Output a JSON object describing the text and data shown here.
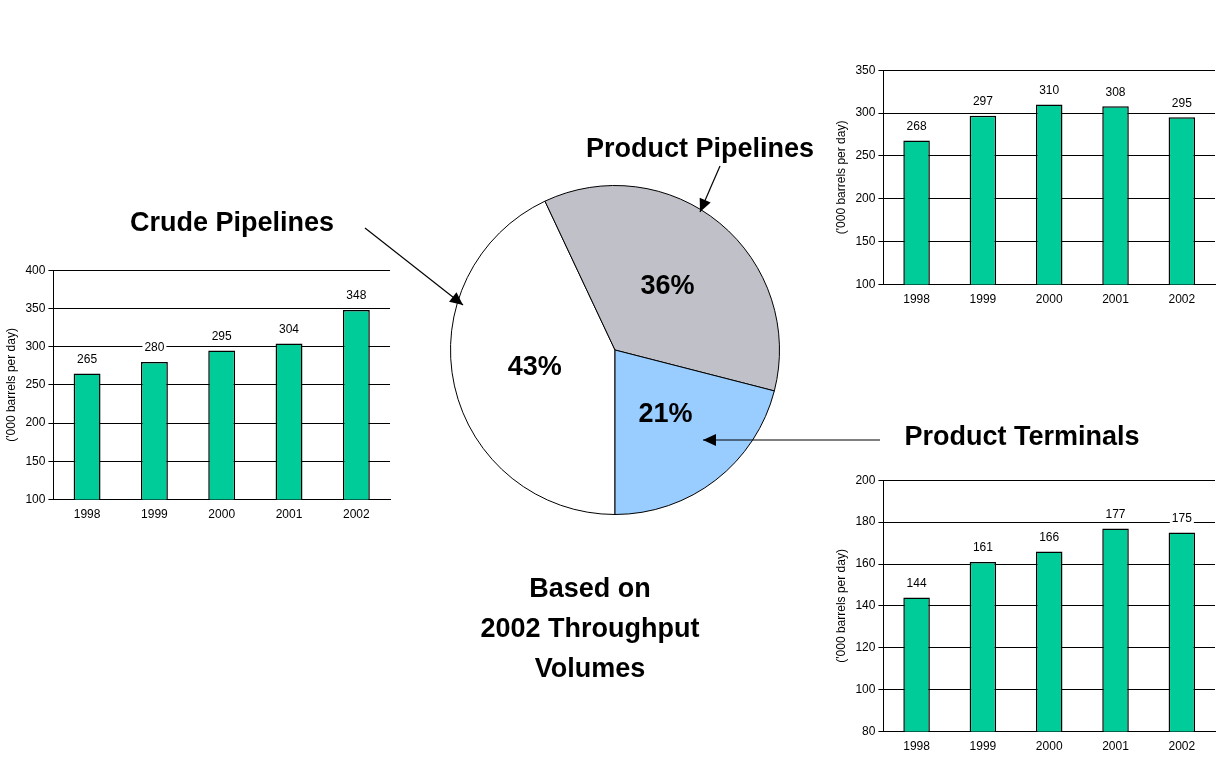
{
  "chart_data": [
    {
      "type": "pie",
      "title": "Based on\n2002 Throughput\nVolumes",
      "categories": [
        "Crude Pipelines",
        "Product Pipelines",
        "Product Terminals"
      ],
      "values": [
        43,
        36,
        21
      ],
      "colors": [
        "#ffffff",
        "#c0c0c8",
        "#99ccff"
      ],
      "value_labels": [
        "43%",
        "36%",
        "21%"
      ],
      "legend": false
    },
    {
      "type": "bar",
      "categories": [
        "1998",
        "1999",
        "2000",
        "2001",
        "2002"
      ],
      "values": [
        265,
        280,
        295,
        304,
        348
      ],
      "color": "#00cc99",
      "ylabel": "('000 barrels per day)",
      "ylim": [
        100,
        400
      ],
      "yticks": [
        100,
        150,
        200,
        250,
        300,
        350,
        400
      ],
      "grid": "y",
      "data_labels": true,
      "legend": false
    },
    {
      "type": "bar",
      "categories": [
        "1998",
        "1999",
        "2000",
        "2001",
        "2002"
      ],
      "values": [
        268,
        297,
        310,
        308,
        295
      ],
      "color": "#00cc99",
      "ylabel": "('000 barrels per day)",
      "ylim": [
        100,
        350
      ],
      "yticks": [
        100,
        150,
        200,
        250,
        300,
        350
      ],
      "grid": "y",
      "data_labels": true,
      "legend": false
    },
    {
      "type": "bar",
      "categories": [
        "1998",
        "1999",
        "2000",
        "2001",
        "2002"
      ],
      "values": [
        144,
        161,
        166,
        177,
        175
      ],
      "color": "#00cc99",
      "ylabel": "('000 barrels per day)",
      "ylim": [
        80,
        200
      ],
      "yticks": [
        80,
        100,
        120,
        140,
        160,
        180,
        200
      ],
      "grid": "y",
      "data_labels": true,
      "legend": false
    }
  ]
}
